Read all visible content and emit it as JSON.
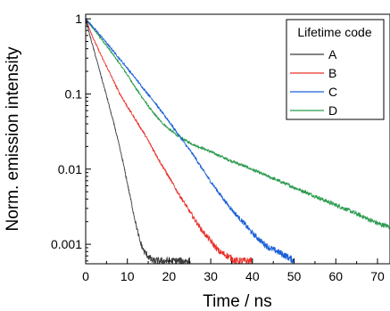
{
  "chart_data": {
    "type": "line",
    "title": "",
    "xlabel": "Time  /  ns",
    "ylabel": "Norm. emission intensity",
    "xlim": [
      0,
      73
    ],
    "ylim": [
      0.00055,
      1.15
    ],
    "yscale": "log",
    "xticks": [
      0,
      10,
      20,
      30,
      40,
      50,
      60,
      70
    ],
    "xtick_labels": [
      "0",
      "10",
      "20",
      "30",
      "40",
      "50",
      "60",
      "70"
    ],
    "yticks": [
      0.001,
      0.01,
      0.1,
      1
    ],
    "ytick_labels": [
      "0.001",
      "0.01",
      "0.1",
      "1"
    ],
    "grid": false,
    "legend": {
      "title": "Lifetime code",
      "placement": "top-right"
    },
    "series": [
      {
        "name": "A",
        "color": "#3a3a3a",
        "x": [
          0,
          1,
          2,
          3,
          4,
          5,
          6,
          7,
          8,
          9,
          10,
          11,
          12,
          13,
          14,
          16,
          18,
          20,
          25
        ],
        "y": [
          1.0,
          0.6,
          0.38,
          0.24,
          0.15,
          0.095,
          0.058,
          0.036,
          0.021,
          0.012,
          0.0065,
          0.0035,
          0.0019,
          0.0011,
          0.0008,
          0.0006,
          0.0006,
          0.0006,
          0.0006
        ]
      },
      {
        "name": "B",
        "color": "#e8302a",
        "x": [
          0,
          2,
          4,
          6,
          8,
          10,
          12,
          14,
          16,
          18,
          20,
          22,
          24,
          26,
          28,
          30,
          32,
          34,
          36,
          38,
          40
        ],
        "y": [
          1.0,
          0.52,
          0.3,
          0.18,
          0.105,
          0.068,
          0.045,
          0.03,
          0.019,
          0.012,
          0.0078,
          0.005,
          0.0033,
          0.0022,
          0.0015,
          0.0011,
          0.0008,
          0.0007,
          0.0006,
          0.0006,
          0.0006
        ]
      },
      {
        "name": "C",
        "color": "#1a5fd6",
        "x": [
          0,
          2,
          4,
          6,
          8,
          10,
          12,
          14,
          16,
          18,
          20,
          22,
          24,
          26,
          28,
          30,
          32,
          34,
          36,
          38,
          40,
          42,
          44,
          46,
          48,
          50
        ],
        "y": [
          1.0,
          0.75,
          0.56,
          0.41,
          0.3,
          0.22,
          0.16,
          0.115,
          0.085,
          0.06,
          0.043,
          0.03,
          0.021,
          0.015,
          0.01,
          0.0068,
          0.0048,
          0.0034,
          0.0025,
          0.0019,
          0.0014,
          0.0011,
          0.0009,
          0.0008,
          0.0007,
          0.0006
        ]
      },
      {
        "name": "D",
        "color": "#2a9a4e",
        "x": [
          0,
          2,
          4,
          6,
          8,
          10,
          12,
          14,
          16,
          18,
          20,
          22,
          24,
          26,
          28,
          30,
          34,
          38,
          42,
          46,
          50,
          54,
          58,
          62,
          66,
          70,
          73
        ],
        "y": [
          1.0,
          0.72,
          0.52,
          0.37,
          0.26,
          0.18,
          0.12,
          0.083,
          0.058,
          0.043,
          0.034,
          0.028,
          0.024,
          0.021,
          0.019,
          0.017,
          0.0135,
          0.011,
          0.0088,
          0.0071,
          0.0057,
          0.0046,
          0.0037,
          0.003,
          0.0024,
          0.0019,
          0.0017
        ]
      }
    ]
  }
}
